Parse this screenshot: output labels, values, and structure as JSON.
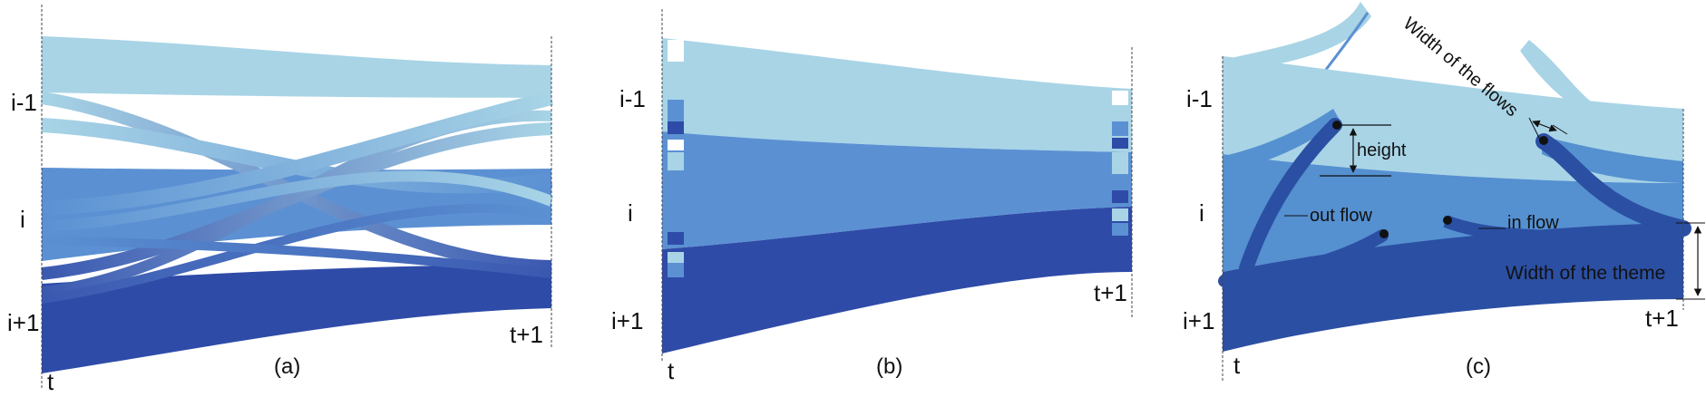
{
  "colors": {
    "light": "#a8d4e6",
    "mid": "#5b91d3",
    "dark": "#2f4ba8",
    "mid_c": "#5590d0",
    "dark_c": "#2b4fa3"
  },
  "panel_a": {
    "row_labels": [
      "i-1",
      "i",
      "i+1"
    ],
    "time_start": "t",
    "time_end": "t+1",
    "caption": "(a)"
  },
  "panel_b": {
    "row_labels": [
      "i-1",
      "i",
      "i+1"
    ],
    "time_start": "t",
    "time_end": "t+1",
    "caption": "(b)"
  },
  "panel_c": {
    "row_labels": [
      "i-1",
      "i",
      "i+1"
    ],
    "time_start": "t",
    "time_end": "t+1",
    "caption": "(c)",
    "annotations": {
      "width_of_flows": "Width of the flows",
      "height": "height",
      "out_flow": "out flow",
      "in_flow": "in flow",
      "width_of_theme": "Width of the theme"
    }
  }
}
